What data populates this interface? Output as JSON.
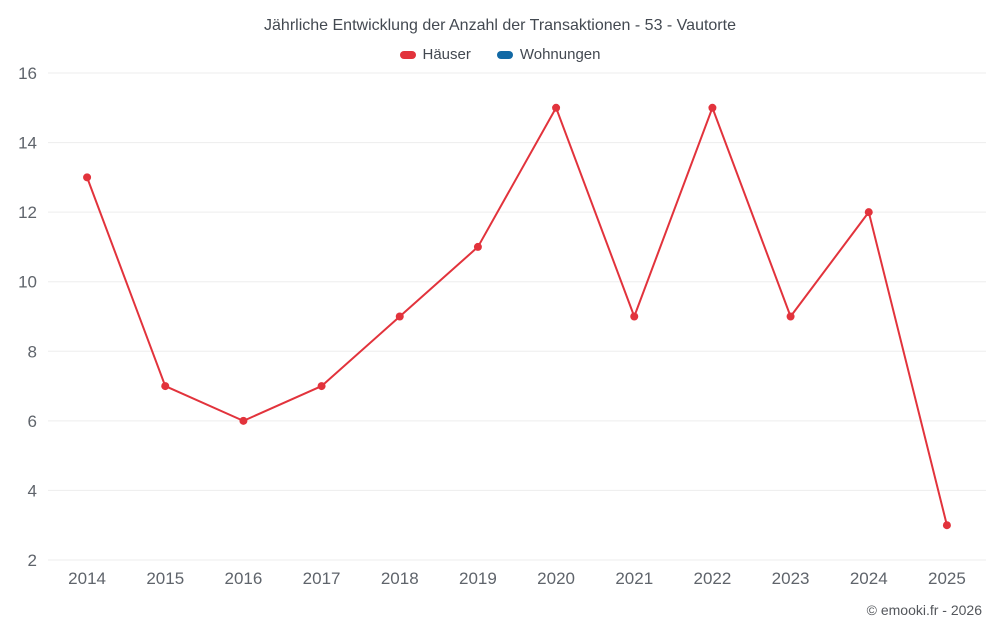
{
  "chart_data": {
    "type": "line",
    "title": "Jährliche Entwicklung der Anzahl der Transaktionen - 53 - Vautorte",
    "categories": [
      "2014",
      "2015",
      "2016",
      "2017",
      "2018",
      "2019",
      "2020",
      "2021",
      "2022",
      "2023",
      "2024",
      "2025"
    ],
    "series": [
      {
        "name": "Häuser",
        "color": "#e2333c",
        "values": [
          13,
          7,
          6,
          7,
          9,
          11,
          15,
          9,
          15,
          9,
          12,
          3
        ]
      },
      {
        "name": "Wohnungen",
        "color": "#1269a5",
        "values": []
      }
    ],
    "xlabel": "",
    "ylabel": "",
    "ylim": [
      2,
      16
    ],
    "yticks": [
      2,
      4,
      6,
      8,
      10,
      12,
      14,
      16
    ],
    "grid": "horizontal",
    "legend_position": "top",
    "tick_color": "#5f646b",
    "grid_color": "#ededed"
  },
  "footer": {
    "copyright": "© emooki.fr - 2026"
  }
}
